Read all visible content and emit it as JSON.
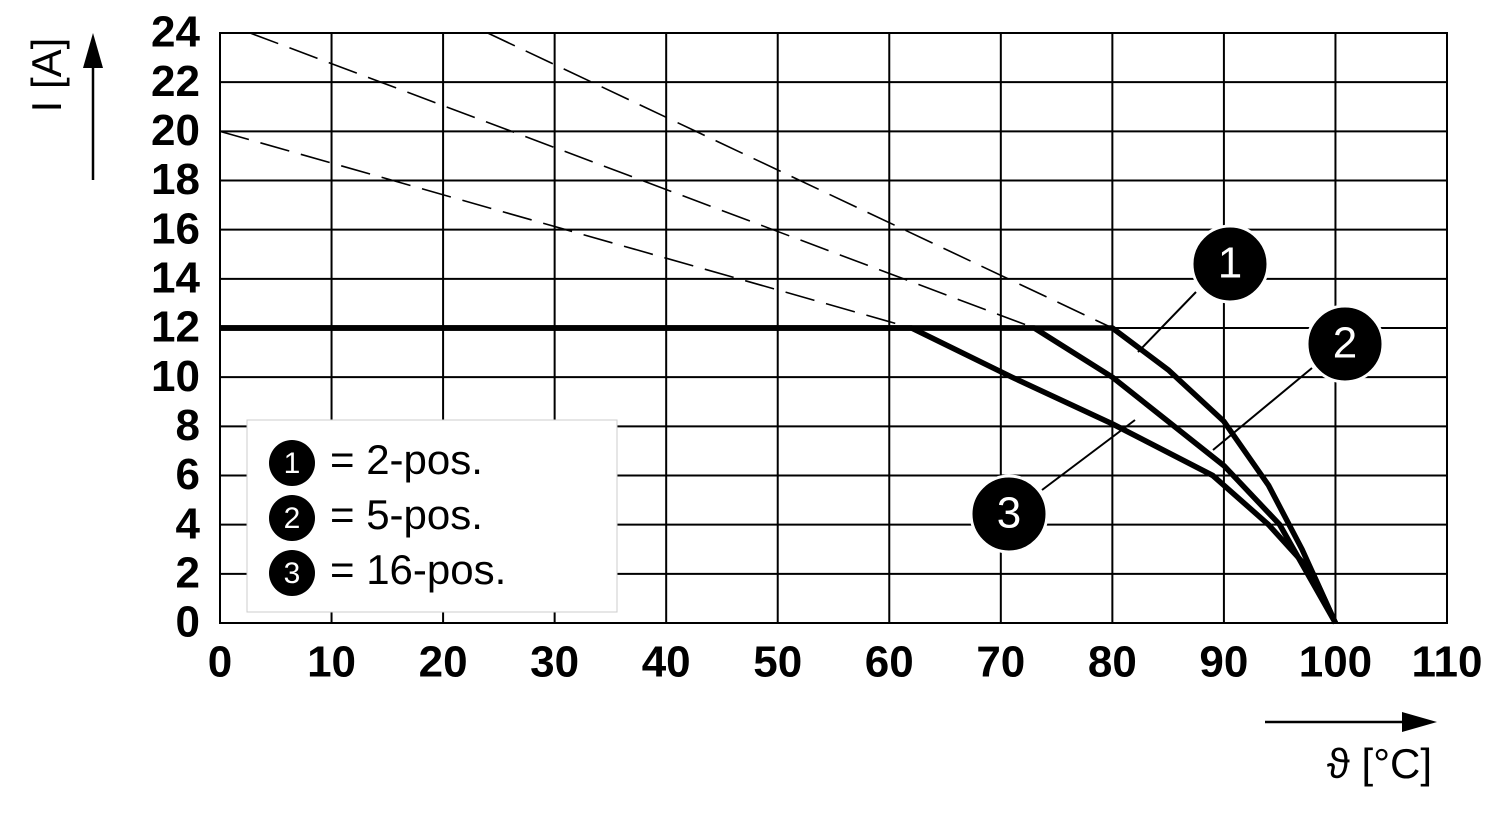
{
  "chart_data": {
    "type": "line",
    "y_label": "I [A]",
    "x_label": "ϑ [°C]",
    "xlim": [
      0,
      110
    ],
    "ylim": [
      0,
      24
    ],
    "xticks": [
      0,
      10,
      20,
      30,
      40,
      50,
      60,
      70,
      80,
      90,
      100,
      110
    ],
    "yticks": [
      0,
      2,
      4,
      6,
      8,
      10,
      12,
      14,
      16,
      18,
      20,
      22,
      24
    ],
    "grid": true,
    "legend": "lower left",
    "series": [
      {
        "label": "1",
        "name": "= 2-pos.",
        "color": "#000000",
        "dashed": false,
        "x": [
          0,
          80,
          85,
          90,
          94,
          97,
          100
        ],
        "values": [
          12,
          12,
          10.3,
          8.2,
          5.6,
          3,
          0
        ]
      },
      {
        "label": "2",
        "name": "= 5-pos.",
        "color": "#000000",
        "dashed": false,
        "x": [
          0,
          73,
          80,
          85,
          90,
          95,
          100
        ],
        "values": [
          12,
          12,
          10,
          8.2,
          6.4,
          4,
          0
        ]
      },
      {
        "label": "3",
        "name": "= 16-pos.",
        "color": "#000000",
        "dashed": false,
        "x": [
          0,
          62,
          71,
          80,
          89,
          94,
          98,
          100
        ],
        "values": [
          12,
          12,
          10,
          8.1,
          6,
          4,
          2,
          0
        ]
      },
      {
        "color": "#000000",
        "dashed": true,
        "x": [
          24,
          80
        ],
        "values": [
          24,
          12
        ]
      },
      {
        "color": "#000000",
        "dashed": true,
        "x": [
          2.7,
          73
        ],
        "values": [
          24,
          12
        ]
      },
      {
        "color": "#000000",
        "dashed": true,
        "x": [
          0,
          62
        ],
        "values": [
          20,
          12
        ]
      }
    ]
  }
}
